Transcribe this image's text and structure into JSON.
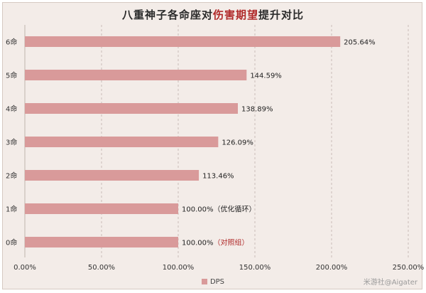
{
  "chart_data": {
    "type": "bar",
    "orientation": "horizontal",
    "title_parts": [
      "八重神子各命座对",
      "伤害期望",
      "提升对比"
    ],
    "categories": [
      "6命",
      "5命",
      "4命",
      "3命",
      "2命",
      "1命",
      "0命"
    ],
    "series": [
      {
        "name": "DPS",
        "values": [
          205.64,
          144.59,
          138.89,
          126.09,
          113.46,
          100.0,
          100.0
        ],
        "labels": [
          "205.64%",
          "144.59%",
          "138.89%",
          "126.09%",
          "113.46%",
          "100.00%",
          "100.00%"
        ],
        "notes": [
          "",
          "",
          "",
          "",
          "",
          "（优化循环）",
          "（对照组）"
        ]
      }
    ],
    "xlim": [
      0,
      250
    ],
    "xticks": [
      "0.00%",
      "50.00%",
      "100.00%",
      "150.00%",
      "200.00%",
      "250.00%"
    ],
    "grid": true,
    "legend": "bottom",
    "colors": {
      "bar": "#d99a9a",
      "title_highlight": "#b02a2a",
      "note_highlight": "#b02a2a"
    }
  },
  "watermark": "米游社@Aigater"
}
